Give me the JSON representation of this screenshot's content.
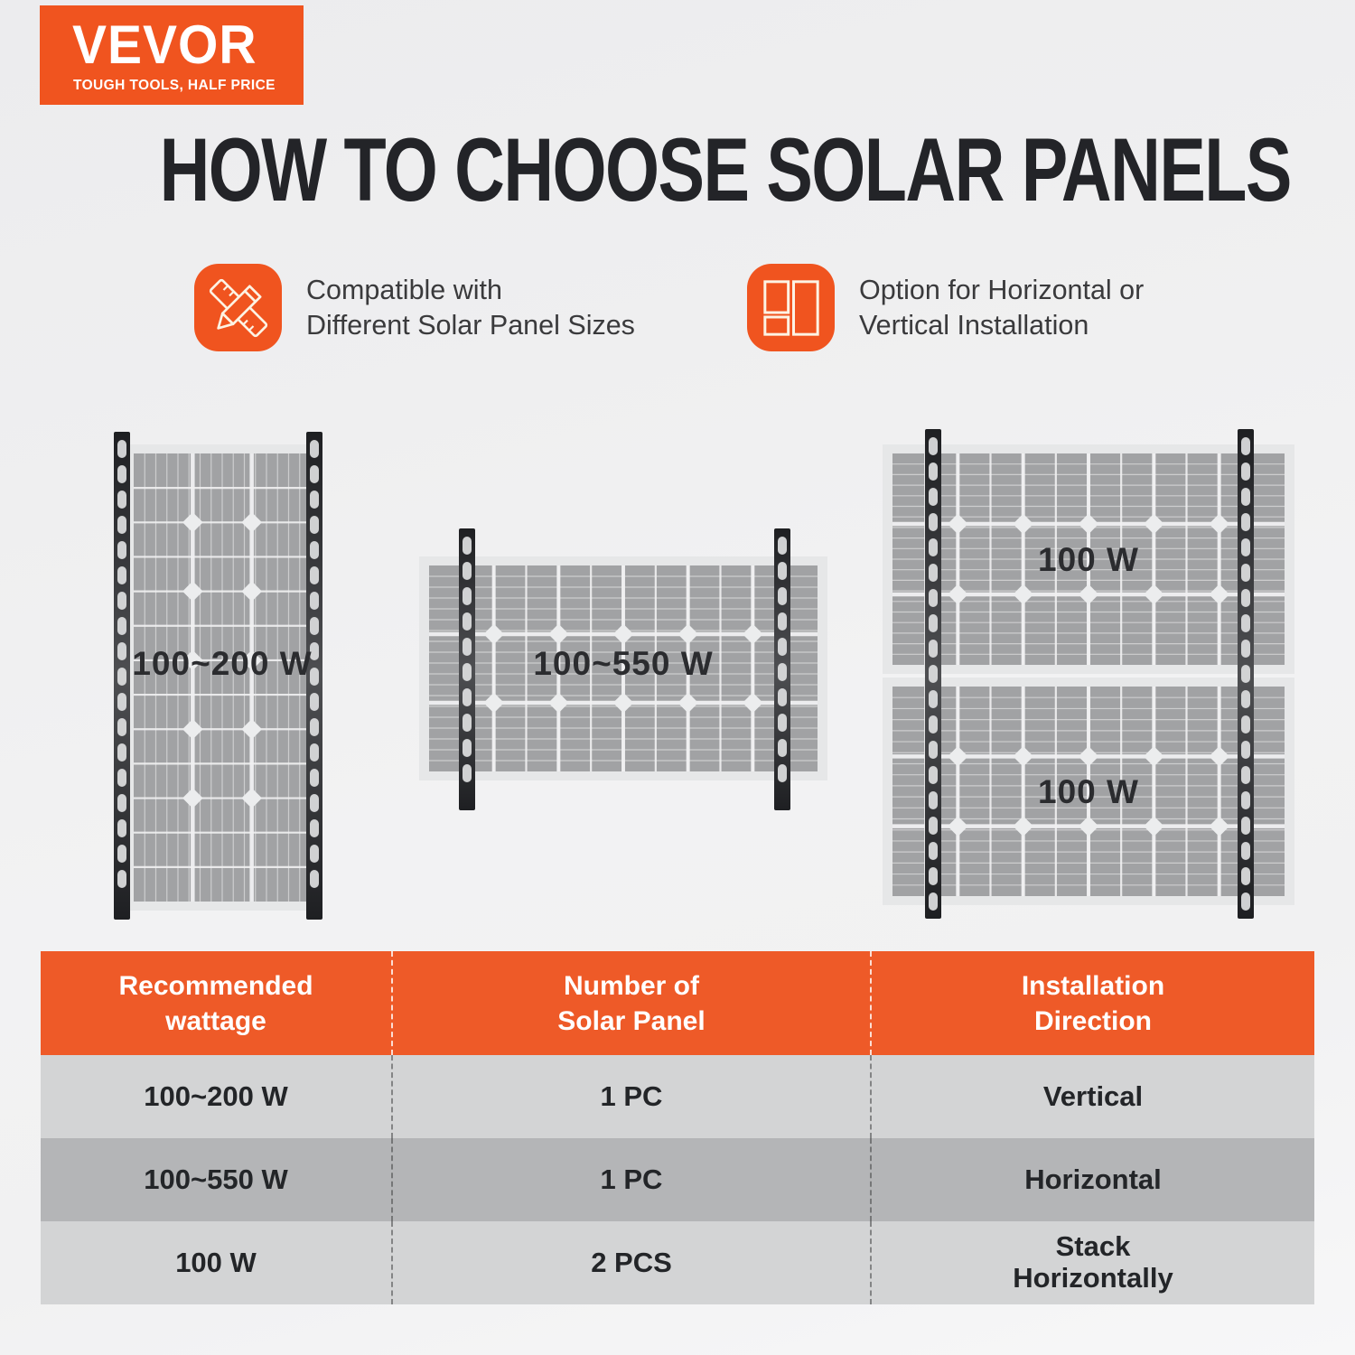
{
  "colors": {
    "accent": "#F0541F",
    "table_header": "#EE5A28",
    "panel_gray": "#A1A2A4",
    "table_row_light": "#D3D4D5",
    "table_row_dark": "#B4B5B7"
  },
  "logo": {
    "brand": "VEVOR",
    "tagline": "TOUGH TOOLS, HALF PRICE"
  },
  "title": "HOW TO CHOOSE SOLAR PANELS",
  "features": [
    {
      "icon": "pencil-ruler-icon",
      "text": "Compatible with\nDifferent Solar Panel Sizes"
    },
    {
      "icon": "layout-grid-icon",
      "text": "Option for Horizontal or\nVertical Installation"
    }
  ],
  "diagrams": [
    {
      "label": "100~200 W",
      "orientation": "vertical",
      "panels": 1
    },
    {
      "label": "100~550 W",
      "orientation": "horizontal",
      "panels": 1
    },
    {
      "labels": [
        "100 W",
        "100 W"
      ],
      "orientation": "stack-horizontal",
      "panels": 2
    }
  ],
  "table": {
    "headers": [
      "Recommended\nwattage",
      "Number of\nSolar Panel",
      "Installation\nDirection"
    ],
    "rows": [
      [
        "100~200 W",
        "1 PC",
        "Vertical"
      ],
      [
        "100~550 W",
        "1 PC",
        "Horizontal"
      ],
      [
        "100 W",
        "2 PCS",
        "Stack\nHorizontally"
      ]
    ]
  }
}
